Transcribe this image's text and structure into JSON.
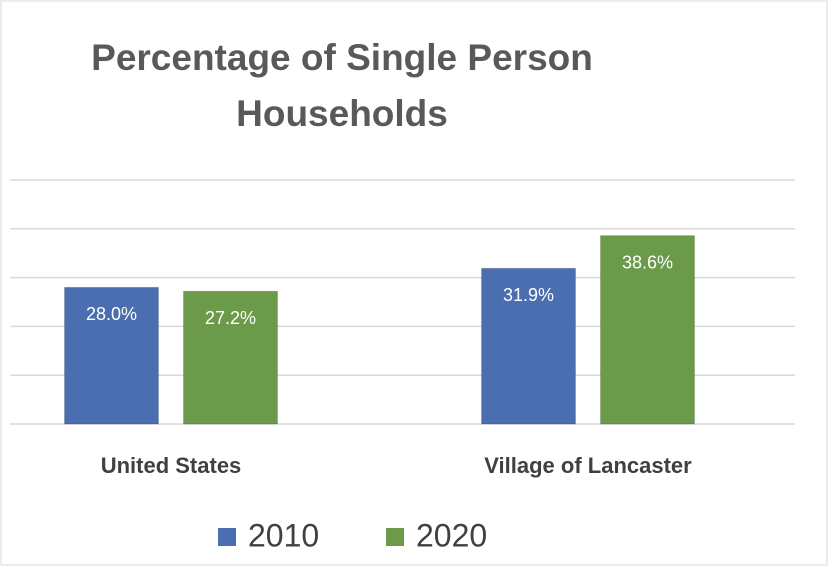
{
  "chart_data": {
    "type": "bar",
    "title": "Percentage of Single Person Households",
    "categories": [
      "United States",
      "Village of Lancaster"
    ],
    "series": [
      {
        "name": "2010",
        "color": "#4a6eb0",
        "values": [
          28.0,
          31.9
        ],
        "value_labels": [
          "28.0%",
          "31.9%"
        ]
      },
      {
        "name": "2020",
        "color": "#6a9a4a",
        "values": [
          27.2,
          38.6
        ],
        "value_labels": [
          "27.2%",
          "38.6%"
        ]
      }
    ],
    "ylim": [
      0,
      50
    ],
    "yticks": [
      0,
      10,
      20,
      30,
      40,
      50
    ],
    "grid": true,
    "legend": "bottom"
  }
}
